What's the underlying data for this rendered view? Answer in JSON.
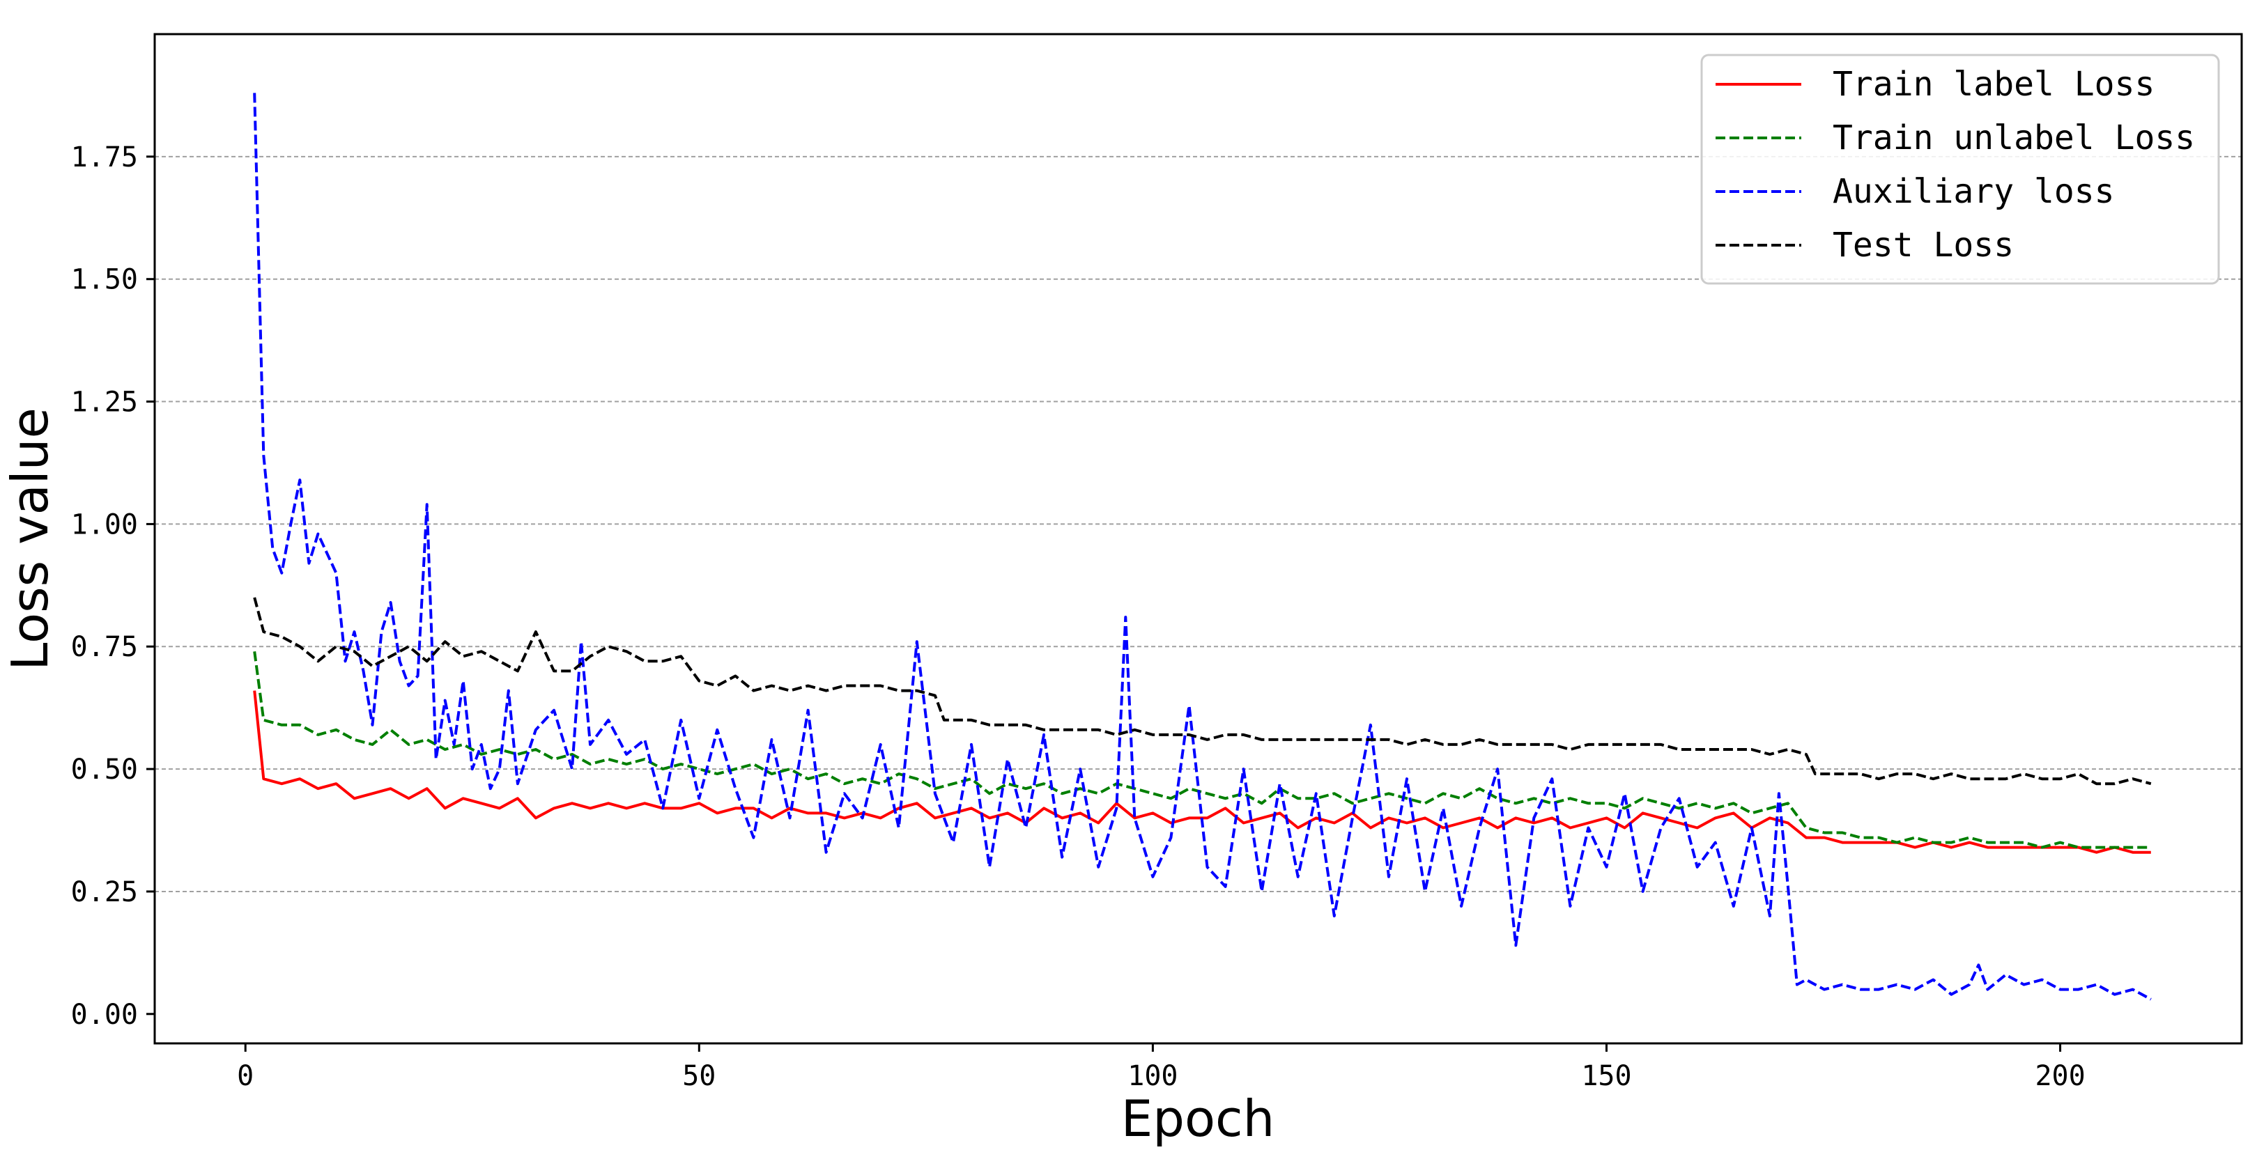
{
  "chart_data": {
    "type": "line",
    "title": "",
    "xlabel": "Epoch",
    "ylabel": "Loss value",
    "xlim": [
      -10,
      220
    ],
    "ylim": [
      -0.06,
      2.0
    ],
    "xticks": [
      0,
      50,
      100,
      150,
      200
    ],
    "xtick_labels": [
      "0",
      "50",
      "100",
      "150",
      "200"
    ],
    "yticks": [
      0.0,
      0.25,
      0.5,
      0.75,
      1.0,
      1.25,
      1.5,
      1.75
    ],
    "ytick_labels": [
      "0.00",
      "0.25",
      "0.50",
      "0.75",
      "1.00",
      "1.25",
      "1.50",
      "1.75"
    ],
    "grid": "y-dashed",
    "legend_position": "top-right",
    "series": [
      {
        "name": "Train label Loss",
        "color": "#ff0000",
        "dash": "solid",
        "x": [
          1,
          2,
          4,
          6,
          8,
          10,
          12,
          14,
          16,
          18,
          20,
          22,
          24,
          26,
          28,
          30,
          32,
          34,
          36,
          38,
          40,
          42,
          44,
          46,
          48,
          50,
          52,
          54,
          56,
          58,
          60,
          62,
          64,
          66,
          68,
          70,
          72,
          74,
          76,
          78,
          80,
          82,
          84,
          86,
          88,
          90,
          92,
          94,
          96,
          98,
          100,
          102,
          104,
          106,
          108,
          110,
          112,
          114,
          116,
          118,
          120,
          122,
          124,
          126,
          128,
          130,
          132,
          134,
          136,
          138,
          140,
          142,
          144,
          146,
          148,
          150,
          152,
          154,
          156,
          158,
          160,
          162,
          164,
          166,
          168,
          170,
          172,
          174,
          176,
          178,
          180,
          182,
          184,
          186,
          188,
          190,
          192,
          194,
          196,
          198,
          200,
          202,
          204,
          206,
          208,
          210
        ],
        "y": [
          0.66,
          0.48,
          0.47,
          0.48,
          0.46,
          0.47,
          0.44,
          0.45,
          0.46,
          0.44,
          0.46,
          0.42,
          0.44,
          0.43,
          0.42,
          0.44,
          0.4,
          0.42,
          0.43,
          0.42,
          0.43,
          0.42,
          0.43,
          0.42,
          0.42,
          0.43,
          0.41,
          0.42,
          0.42,
          0.4,
          0.42,
          0.41,
          0.41,
          0.4,
          0.41,
          0.4,
          0.42,
          0.43,
          0.4,
          0.41,
          0.42,
          0.4,
          0.41,
          0.39,
          0.42,
          0.4,
          0.41,
          0.39,
          0.43,
          0.4,
          0.41,
          0.39,
          0.4,
          0.4,
          0.42,
          0.39,
          0.4,
          0.41,
          0.38,
          0.4,
          0.39,
          0.41,
          0.38,
          0.4,
          0.39,
          0.4,
          0.38,
          0.39,
          0.4,
          0.38,
          0.4,
          0.39,
          0.4,
          0.38,
          0.39,
          0.4,
          0.38,
          0.41,
          0.4,
          0.39,
          0.38,
          0.4,
          0.41,
          0.38,
          0.4,
          0.39,
          0.36,
          0.36,
          0.35,
          0.35,
          0.35,
          0.35,
          0.34,
          0.35,
          0.34,
          0.35,
          0.34,
          0.34,
          0.34,
          0.34,
          0.34,
          0.34,
          0.33,
          0.34,
          0.33,
          0.33
        ]
      },
      {
        "name": "Train unlabel Loss",
        "color": "#007f00",
        "dash": "dashed",
        "x": [
          1,
          2,
          4,
          6,
          8,
          10,
          12,
          14,
          16,
          18,
          20,
          22,
          24,
          26,
          28,
          30,
          32,
          34,
          36,
          38,
          40,
          42,
          44,
          46,
          48,
          50,
          52,
          54,
          56,
          58,
          60,
          62,
          64,
          66,
          68,
          70,
          72,
          74,
          76,
          78,
          80,
          82,
          84,
          86,
          88,
          90,
          92,
          94,
          96,
          98,
          100,
          102,
          104,
          106,
          108,
          110,
          112,
          114,
          116,
          118,
          120,
          122,
          124,
          126,
          128,
          130,
          132,
          134,
          136,
          138,
          140,
          142,
          144,
          146,
          148,
          150,
          152,
          154,
          156,
          158,
          160,
          162,
          164,
          166,
          168,
          170,
          172,
          174,
          176,
          178,
          180,
          182,
          184,
          186,
          188,
          190,
          192,
          194,
          196,
          198,
          200,
          202,
          204,
          206,
          208,
          210
        ],
        "y": [
          0.74,
          0.6,
          0.59,
          0.59,
          0.57,
          0.58,
          0.56,
          0.55,
          0.58,
          0.55,
          0.56,
          0.54,
          0.55,
          0.53,
          0.54,
          0.53,
          0.54,
          0.52,
          0.53,
          0.51,
          0.52,
          0.51,
          0.52,
          0.5,
          0.51,
          0.5,
          0.49,
          0.5,
          0.51,
          0.49,
          0.5,
          0.48,
          0.49,
          0.47,
          0.48,
          0.47,
          0.49,
          0.48,
          0.46,
          0.47,
          0.48,
          0.45,
          0.47,
          0.46,
          0.47,
          0.45,
          0.46,
          0.45,
          0.47,
          0.46,
          0.45,
          0.44,
          0.46,
          0.45,
          0.44,
          0.45,
          0.43,
          0.46,
          0.44,
          0.44,
          0.45,
          0.43,
          0.44,
          0.45,
          0.44,
          0.43,
          0.45,
          0.44,
          0.46,
          0.44,
          0.43,
          0.44,
          0.43,
          0.44,
          0.43,
          0.43,
          0.42,
          0.44,
          0.43,
          0.42,
          0.43,
          0.42,
          0.43,
          0.41,
          0.42,
          0.43,
          0.38,
          0.37,
          0.37,
          0.36,
          0.36,
          0.35,
          0.36,
          0.35,
          0.35,
          0.36,
          0.35,
          0.35,
          0.35,
          0.34,
          0.35,
          0.34,
          0.34,
          0.34,
          0.34,
          0.34
        ]
      },
      {
        "name": "Auxiliary loss",
        "color": "#0000ff",
        "dash": "dashed",
        "x": [
          1,
          2,
          3,
          4,
          5,
          6,
          7,
          8,
          9,
          10,
          11,
          12,
          13,
          14,
          15,
          16,
          17,
          18,
          19,
          20,
          21,
          22,
          23,
          24,
          25,
          26,
          27,
          28,
          29,
          30,
          32,
          34,
          36,
          37,
          38,
          40,
          42,
          44,
          46,
          48,
          50,
          52,
          54,
          56,
          58,
          60,
          62,
          64,
          66,
          68,
          70,
          72,
          74,
          76,
          78,
          80,
          82,
          84,
          86,
          88,
          90,
          92,
          94,
          96,
          97,
          98,
          100,
          102,
          104,
          106,
          108,
          110,
          112,
          114,
          116,
          118,
          120,
          122,
          124,
          126,
          128,
          130,
          132,
          134,
          136,
          138,
          140,
          142,
          144,
          146,
          148,
          150,
          152,
          154,
          156,
          158,
          160,
          162,
          164,
          166,
          168,
          169,
          170,
          171,
          172,
          174,
          176,
          178,
          180,
          182,
          184,
          186,
          188,
          190,
          191,
          192,
          194,
          196,
          198,
          200,
          202,
          204,
          206,
          208,
          210
        ],
        "y": [
          1.88,
          1.14,
          0.95,
          0.9,
          1.0,
          1.09,
          0.92,
          0.98,
          0.94,
          0.9,
          0.72,
          0.78,
          0.7,
          0.59,
          0.78,
          0.84,
          0.72,
          0.67,
          0.69,
          1.04,
          0.52,
          0.64,
          0.55,
          0.68,
          0.5,
          0.55,
          0.46,
          0.5,
          0.66,
          0.47,
          0.58,
          0.62,
          0.5,
          0.76,
          0.55,
          0.6,
          0.53,
          0.56,
          0.42,
          0.6,
          0.44,
          0.58,
          0.46,
          0.36,
          0.56,
          0.4,
          0.62,
          0.33,
          0.45,
          0.4,
          0.55,
          0.38,
          0.76,
          0.45,
          0.35,
          0.55,
          0.3,
          0.52,
          0.38,
          0.57,
          0.32,
          0.5,
          0.3,
          0.42,
          0.81,
          0.4,
          0.28,
          0.36,
          0.63,
          0.3,
          0.26,
          0.5,
          0.25,
          0.47,
          0.28,
          0.45,
          0.2,
          0.4,
          0.59,
          0.28,
          0.48,
          0.25,
          0.42,
          0.22,
          0.38,
          0.5,
          0.14,
          0.4,
          0.48,
          0.22,
          0.38,
          0.3,
          0.45,
          0.25,
          0.38,
          0.44,
          0.3,
          0.35,
          0.22,
          0.38,
          0.2,
          0.45,
          0.26,
          0.06,
          0.07,
          0.05,
          0.06,
          0.05,
          0.05,
          0.06,
          0.05,
          0.07,
          0.04,
          0.06,
          0.1,
          0.05,
          0.08,
          0.06,
          0.07,
          0.05,
          0.05,
          0.06,
          0.04,
          0.05,
          0.03
        ]
      },
      {
        "name": "Test Loss",
        "color": "#000000",
        "dash": "dashed",
        "x": [
          1,
          2,
          4,
          6,
          8,
          10,
          12,
          14,
          16,
          18,
          20,
          22,
          24,
          26,
          28,
          30,
          32,
          34,
          36,
          38,
          40,
          42,
          44,
          46,
          48,
          50,
          52,
          54,
          56,
          58,
          60,
          62,
          64,
          66,
          68,
          70,
          72,
          74,
          76,
          77,
          78,
          80,
          82,
          84,
          86,
          88,
          90,
          92,
          94,
          96,
          98,
          100,
          102,
          104,
          106,
          108,
          110,
          112,
          114,
          116,
          118,
          120,
          122,
          124,
          126,
          128,
          130,
          132,
          134,
          136,
          138,
          140,
          142,
          144,
          146,
          148,
          150,
          152,
          154,
          156,
          158,
          160,
          162,
          164,
          166,
          168,
          170,
          172,
          173,
          174,
          176,
          178,
          180,
          182,
          184,
          186,
          188,
          190,
          192,
          194,
          196,
          198,
          200,
          202,
          204,
          206,
          208,
          210
        ],
        "y": [
          0.85,
          0.78,
          0.77,
          0.75,
          0.72,
          0.75,
          0.74,
          0.71,
          0.73,
          0.75,
          0.72,
          0.76,
          0.73,
          0.74,
          0.72,
          0.7,
          0.78,
          0.7,
          0.7,
          0.73,
          0.75,
          0.74,
          0.72,
          0.72,
          0.73,
          0.68,
          0.67,
          0.69,
          0.66,
          0.67,
          0.66,
          0.67,
          0.66,
          0.67,
          0.67,
          0.67,
          0.66,
          0.66,
          0.65,
          0.6,
          0.6,
          0.6,
          0.59,
          0.59,
          0.59,
          0.58,
          0.58,
          0.58,
          0.58,
          0.57,
          0.58,
          0.57,
          0.57,
          0.57,
          0.56,
          0.57,
          0.57,
          0.56,
          0.56,
          0.56,
          0.56,
          0.56,
          0.56,
          0.56,
          0.56,
          0.55,
          0.56,
          0.55,
          0.55,
          0.56,
          0.55,
          0.55,
          0.55,
          0.55,
          0.54,
          0.55,
          0.55,
          0.55,
          0.55,
          0.55,
          0.54,
          0.54,
          0.54,
          0.54,
          0.54,
          0.53,
          0.54,
          0.53,
          0.49,
          0.49,
          0.49,
          0.49,
          0.48,
          0.49,
          0.49,
          0.48,
          0.49,
          0.48,
          0.48,
          0.48,
          0.49,
          0.48,
          0.48,
          0.49,
          0.47,
          0.47,
          0.48,
          0.47
        ]
      }
    ]
  }
}
